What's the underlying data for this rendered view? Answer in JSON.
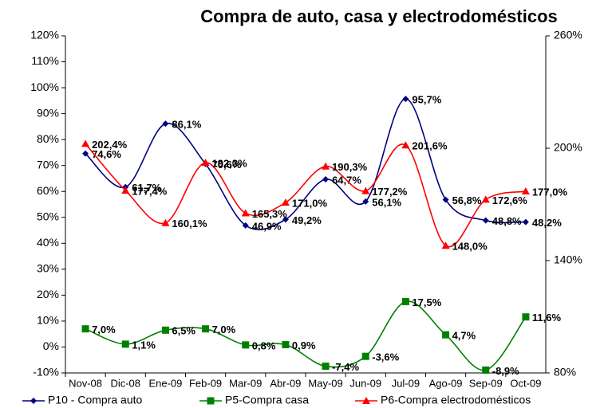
{
  "chart_data": {
    "type": "line",
    "title": "Compra de auto, casa y electrodomésticos",
    "categories": [
      "Nov-08",
      "Dic-08",
      "Ene-09",
      "Feb-09",
      "Mar-09",
      "Abr-09",
      "May-09",
      "Jun-09",
      "Jul-09",
      "Ago-09",
      "Sep-09",
      "Oct-09"
    ],
    "ylim": [
      -10,
      120
    ],
    "yticks": [
      {
        "value": -10,
        "label": "-10%"
      },
      {
        "value": 0,
        "label": "0%"
      },
      {
        "value": 10,
        "label": "10%"
      },
      {
        "value": 20,
        "label": "20%"
      },
      {
        "value": 30,
        "label": "30%"
      },
      {
        "value": 40,
        "label": "40%"
      },
      {
        "value": 50,
        "label": "50%"
      },
      {
        "value": 60,
        "label": "60%"
      },
      {
        "value": 70,
        "label": "70%"
      },
      {
        "value": 80,
        "label": "80%"
      },
      {
        "value": 90,
        "label": "90%"
      },
      {
        "value": 100,
        "label": "100%"
      },
      {
        "value": 110,
        "label": "110%"
      },
      {
        "value": 120,
        "label": "120%"
      }
    ],
    "y2lim": [
      80,
      260
    ],
    "y2ticks": [
      {
        "value": 80,
        "label": "80%"
      },
      {
        "value": 140,
        "label": "140%"
      },
      {
        "value": 200,
        "label": "200%"
      },
      {
        "value": 260,
        "label": "260%"
      }
    ],
    "grid": false,
    "legend": "bottom",
    "smooth": true,
    "series": [
      {
        "name": "P10 - Compra auto",
        "color": "#000080",
        "marker": "diamond",
        "values": [
          74.6,
          61.7,
          86.1,
          70.6,
          46.9,
          49.2,
          64.7,
          56.1,
          95.7,
          56.8,
          48.8,
          48.2
        ],
        "value_labels": [
          "74,6%",
          "61,7%",
          "86,1%",
          "70,6%",
          "46,9%",
          "49,2%",
          "64,7%",
          "56,1%",
          "95,7%",
          "56,8%",
          "48,8%",
          "48,2%"
        ]
      },
      {
        "name": "P5-Compra casa",
        "color": "#008000",
        "marker": "square",
        "values": [
          7.0,
          1.1,
          6.5,
          7.0,
          0.8,
          0.9,
          -7.4,
          -3.6,
          17.5,
          4.7,
          -8.9,
          11.6
        ],
        "value_labels": [
          "7,0%",
          "1,1%",
          "6,5%",
          "7,0%",
          "0,8%",
          "0,9%",
          "-7,4%",
          "-3,6%",
          "17,5%",
          "4,7%",
          "-8,9%",
          "11,6%"
        ]
      },
      {
        "name": "P6-Compra electrodomésticos",
        "color": "#ff0000",
        "marker": "triangle",
        "axis": "y2",
        "values": [
          202.4,
          177.4,
          160.1,
          192.3,
          165.3,
          171.0,
          190.3,
          177.2,
          201.6,
          148.0,
          172.6,
          177.0
        ],
        "value_labels": [
          "202,4%",
          "177,4%",
          "160,1%",
          "192,3%",
          "165,3%",
          "171,0%",
          "190,3%",
          "177,2%",
          "201,6%",
          "148,0%",
          "172,6%",
          "177,0%"
        ]
      }
    ]
  }
}
